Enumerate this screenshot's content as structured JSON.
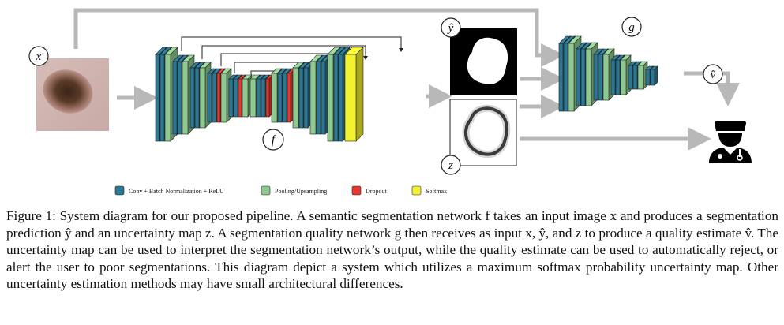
{
  "diagram": {
    "labels": {
      "x": "x",
      "f": "f",
      "g": "g",
      "yhat": "ŷ",
      "z": "z",
      "vhat": "v̂"
    },
    "legend": [
      {
        "label": "Conv + Batch Normalization + ReLU",
        "color": "#2b7794"
      },
      {
        "label": "Pooling/Upsampling",
        "color": "#8fc98f"
      },
      {
        "label": "Dropout",
        "color": "#e8372c"
      },
      {
        "label": "Softmax",
        "color": "#f2f230"
      }
    ],
    "icons": [
      "doctor-icon"
    ]
  },
  "caption": {
    "label": "Figure 1:",
    "text": "System diagram for our proposed pipeline. A semantic segmentation network f takes an input image x and produces a segmentation prediction ŷ and an uncertainty map z. A segmentation quality network g then receives as input x, ŷ, and z to produce a quality estimate v̂. The uncertainty map can be used to interpret the segmentation network’s output, while the quality estimate can be used to automatically reject, or alert the user to poor segmentations. This diagram depict a system which utilizes a maximum softmax probability uncertainty map. Other uncertainty estimation methods may have small architectural differences."
  }
}
